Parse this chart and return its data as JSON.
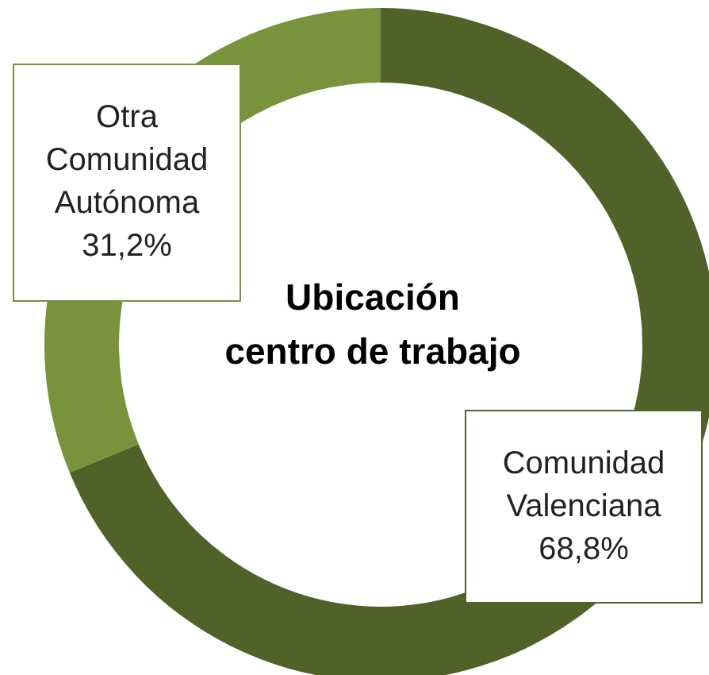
{
  "chart_data": {
    "type": "donut",
    "title": "Ubicación centro de trabajo",
    "categories": [
      "Comunidad Valenciana",
      "Otra Comunidad Autónoma"
    ],
    "values": [
      68.8,
      31.2
    ],
    "value_labels": [
      "68,8%",
      "31,2%"
    ],
    "colors": [
      "#4f6228",
      "#77933c"
    ],
    "legend": false
  }
}
